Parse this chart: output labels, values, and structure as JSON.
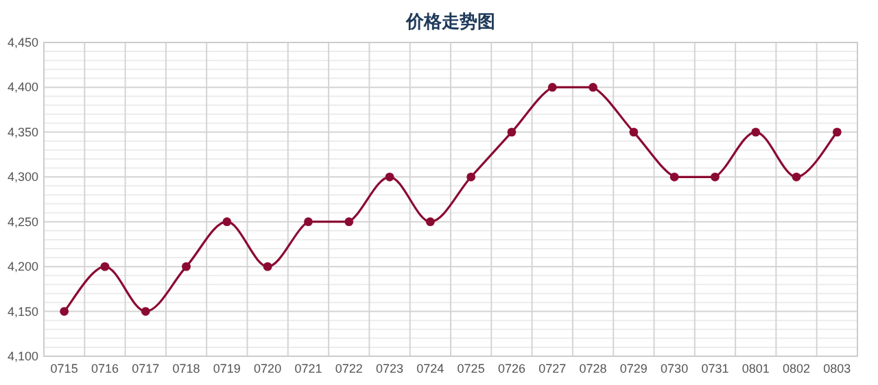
{
  "chart_data": {
    "type": "line",
    "title": "价格走势图",
    "categories": [
      "0715",
      "0716",
      "0717",
      "0718",
      "0719",
      "0720",
      "0721",
      "0722",
      "0723",
      "0724",
      "0725",
      "0726",
      "0727",
      "0728",
      "0729",
      "0730",
      "0731",
      "0801",
      "0802",
      "0803"
    ],
    "series": [
      {
        "color": "#8b0a32",
        "values": [
          4150,
          4200,
          4150,
          4200,
          4250,
          4200,
          4250,
          4250,
          4300,
          4250,
          4300,
          4350,
          4400,
          4400,
          4350,
          4300,
          4300,
          4350,
          4300,
          4350
        ]
      }
    ],
    "ylim": [
      4100,
      4450
    ],
    "yticks": [
      {
        "value": 4100,
        "label": "4,100"
      },
      {
        "value": 4150,
        "label": "4,150"
      },
      {
        "value": 4200,
        "label": "4,200"
      },
      {
        "value": 4250,
        "label": "4,250"
      },
      {
        "value": 4300,
        "label": "4,300"
      },
      {
        "value": 4350,
        "label": "4,350"
      },
      {
        "value": 4400,
        "label": "4,400"
      },
      {
        "value": 4450,
        "label": "4,450"
      }
    ],
    "grid": true,
    "marker": "circle",
    "line_style": "solid"
  }
}
